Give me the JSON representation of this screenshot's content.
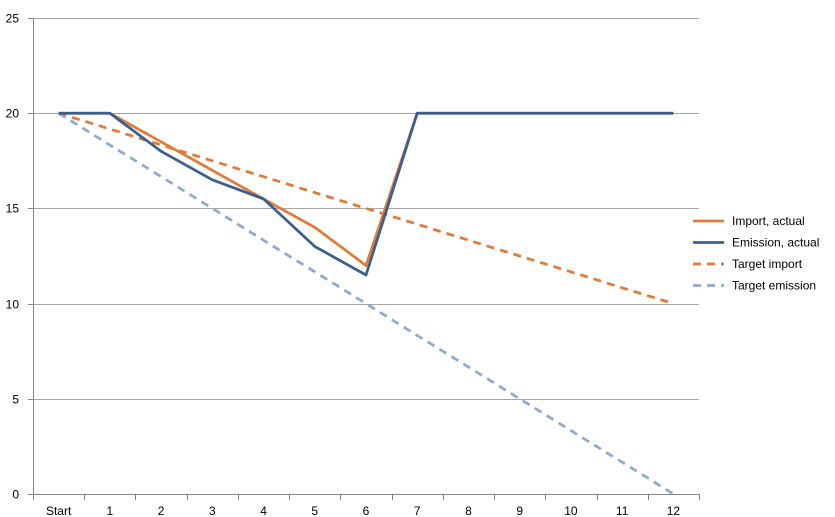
{
  "chart_data": {
    "type": "line",
    "title": "",
    "xlabel": "",
    "ylabel": "",
    "categories": [
      "Start",
      "1",
      "2",
      "3",
      "4",
      "5",
      "6",
      "7",
      "8",
      "9",
      "10",
      "11",
      "12"
    ],
    "ylim": [
      0,
      25
    ],
    "yticks": [
      0,
      5,
      10,
      15,
      20,
      25
    ],
    "grid": "horizontal",
    "legend_position": "right",
    "series": [
      {
        "name": "Import, actual",
        "color": "#E07B39",
        "dash": "solid",
        "values": [
          20,
          20,
          18.5,
          17,
          15.5,
          14,
          12,
          20,
          20,
          20,
          20,
          20,
          20
        ]
      },
      {
        "name": "Emission, actual",
        "color": "#3A5F8F",
        "dash": "solid",
        "values": [
          20,
          20,
          18,
          16.5,
          15.5,
          13,
          11.5,
          20,
          20,
          20,
          20,
          20,
          20
        ]
      },
      {
        "name": "Target import",
        "color": "#E07B39",
        "dash": "dashed",
        "values": [
          20,
          19.17,
          18.33,
          17.5,
          16.67,
          15.83,
          15,
          14.17,
          13.33,
          12.5,
          11.67,
          10.83,
          10
        ]
      },
      {
        "name": "Target emission",
        "color": "#8FAACF",
        "dash": "dashed",
        "values": [
          20,
          18.33,
          16.67,
          15,
          13.33,
          11.67,
          10,
          8.33,
          6.67,
          5,
          3.33,
          1.67,
          0
        ]
      }
    ]
  }
}
